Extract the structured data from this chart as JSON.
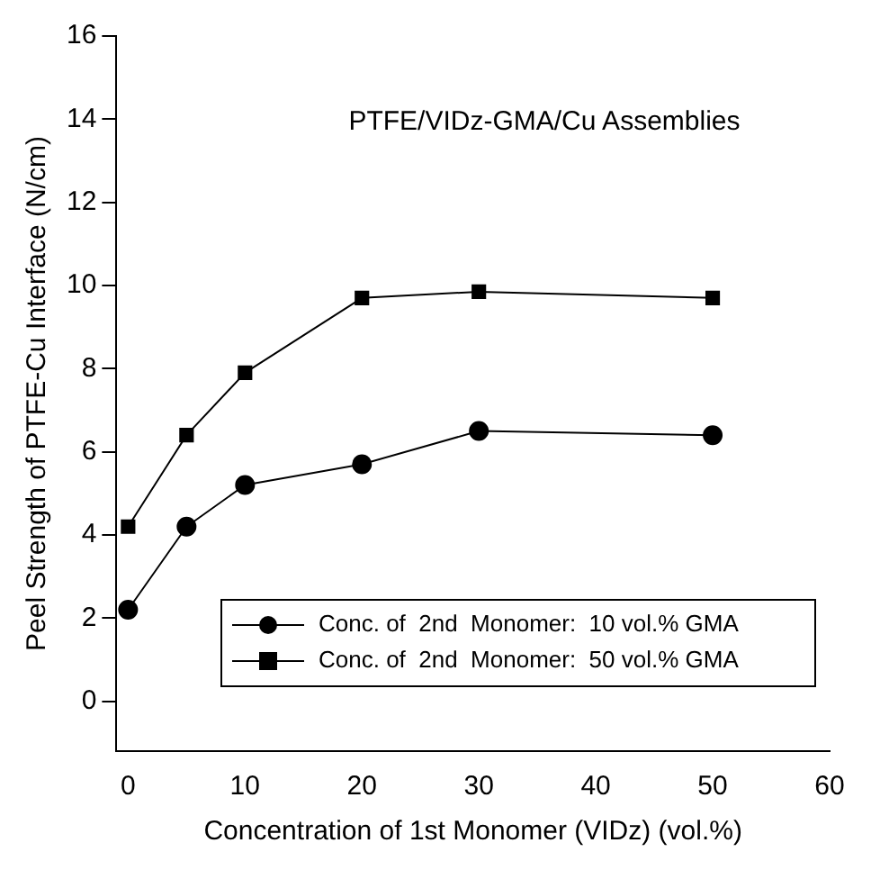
{
  "chart_data": {
    "type": "line",
    "xlabel": "Concentration of 1st Monomer (VIDz) (vol.%)",
    "ylabel": "Peel Strength of PTFE-Cu Interface (N/cm)",
    "annotations": [
      "PTFE/VIDz-GMA/Cu Assemblies"
    ],
    "x": [
      0,
      5,
      10,
      20,
      30,
      50
    ],
    "series": [
      {
        "name": "Conc. of  2nd  Monomer:  10 vol.% GMA",
        "color": "#000000",
        "marker": "circle",
        "values": [
          2.2,
          4.2,
          5.2,
          5.7,
          6.5,
          6.4
        ]
      },
      {
        "name": "Conc. of  2nd  Monomer:  50 vol.% GMA",
        "color": "#000000",
        "marker": "square",
        "values": [
          4.2,
          6.4,
          7.9,
          9.7,
          9.85,
          9.7
        ]
      }
    ],
    "xlim": [
      -1,
      60
    ],
    "xticks": [
      0,
      10,
      20,
      30,
      40,
      50,
      60
    ],
    "ylim": [
      -1.2,
      16
    ],
    "yticks": [
      0,
      2,
      4,
      6,
      8,
      10,
      12,
      14,
      16
    ],
    "grid": false,
    "legend": "bottom right",
    "line_style": "solid"
  }
}
